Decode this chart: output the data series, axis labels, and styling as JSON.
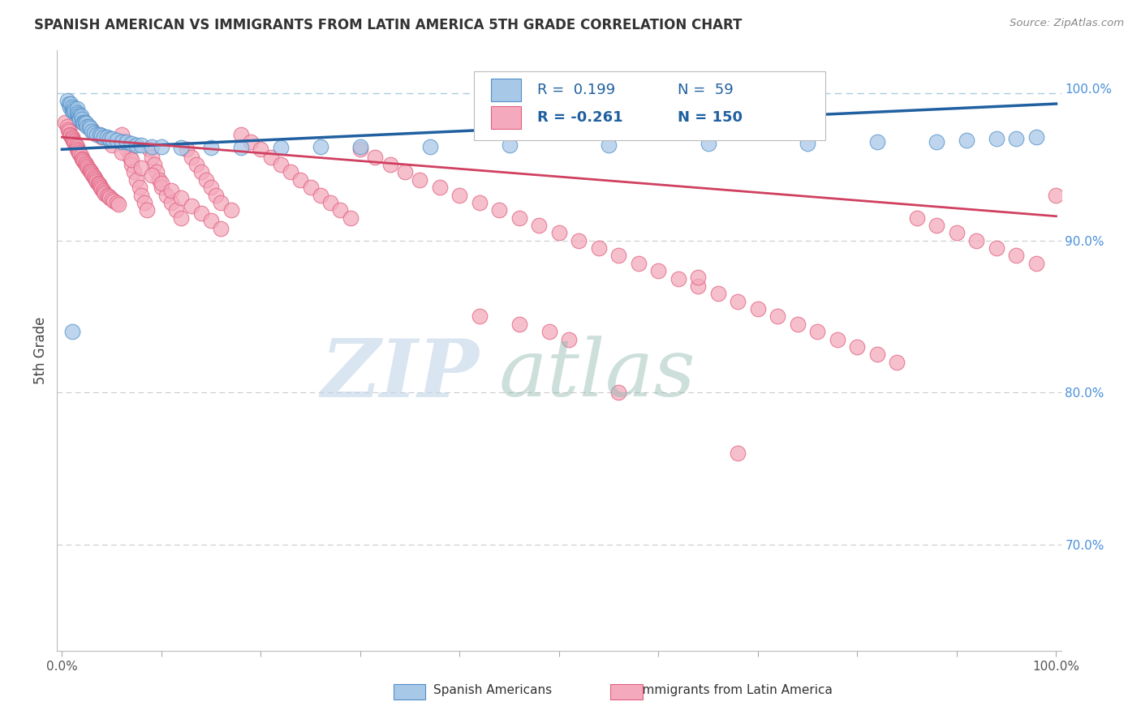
{
  "title": "SPANISH AMERICAN VS IMMIGRANTS FROM LATIN AMERICA 5TH GRADE CORRELATION CHART",
  "source_text": "Source: ZipAtlas.com",
  "ylabel": "5th Grade",
  "ylim": [
    0.63,
    1.025
  ],
  "xlim": [
    -0.005,
    1.005
  ],
  "ytick_values": [
    0.7,
    0.8,
    0.9,
    1.0
  ],
  "blue_color": "#A8C8E8",
  "pink_color": "#F4AABC",
  "blue_edge_color": "#5090C8",
  "pink_edge_color": "#E06080",
  "blue_line_color": "#2060A0",
  "pink_line_color": "#D04060",
  "grid_color": "#CCCCCC",
  "top_ref_color": "#AACCDD",
  "watermark_zip_color": "#C0D4E8",
  "watermark_atlas_color": "#90B8B0",
  "legend_r1": "R =  0.199",
  "legend_n1": "N =  59",
  "legend_r2": "R = -0.261",
  "legend_n2": "N = 150",
  "figsize": [
    14.06,
    8.92
  ],
  "dpi": 100,
  "blue_x": [
    0.005,
    0.007,
    0.008,
    0.009,
    0.01,
    0.01,
    0.011,
    0.012,
    0.013,
    0.015,
    0.015,
    0.016,
    0.017,
    0.018,
    0.018,
    0.019,
    0.02,
    0.021,
    0.022,
    0.023,
    0.024,
    0.025,
    0.027,
    0.028,
    0.03,
    0.032,
    0.035,
    0.038,
    0.04,
    0.042,
    0.045,
    0.048,
    0.05,
    0.055,
    0.06,
    0.065,
    0.07,
    0.075,
    0.08,
    0.09,
    0.1,
    0.12,
    0.15,
    0.18,
    0.22,
    0.26,
    0.3,
    0.37,
    0.45,
    0.55,
    0.65,
    0.75,
    0.82,
    0.88,
    0.91,
    0.94,
    0.96,
    0.98,
    0.01
  ],
  "blue_y": [
    0.992,
    0.99,
    0.988,
    0.99,
    0.988,
    0.985,
    0.985,
    0.987,
    0.985,
    0.987,
    0.984,
    0.983,
    0.982,
    0.981,
    0.98,
    0.982,
    0.98,
    0.978,
    0.977,
    0.978,
    0.977,
    0.975,
    0.975,
    0.974,
    0.972,
    0.971,
    0.97,
    0.97,
    0.969,
    0.968,
    0.968,
    0.967,
    0.967,
    0.966,
    0.965,
    0.965,
    0.964,
    0.963,
    0.963,
    0.962,
    0.962,
    0.961,
    0.961,
    0.961,
    0.961,
    0.962,
    0.962,
    0.962,
    0.963,
    0.963,
    0.964,
    0.964,
    0.965,
    0.965,
    0.966,
    0.967,
    0.967,
    0.968,
    0.84
  ],
  "pink_x": [
    0.003,
    0.005,
    0.006,
    0.007,
    0.008,
    0.009,
    0.01,
    0.01,
    0.011,
    0.012,
    0.013,
    0.014,
    0.015,
    0.015,
    0.016,
    0.017,
    0.018,
    0.019,
    0.02,
    0.021,
    0.022,
    0.023,
    0.024,
    0.025,
    0.026,
    0.027,
    0.028,
    0.029,
    0.03,
    0.031,
    0.032,
    0.033,
    0.034,
    0.035,
    0.036,
    0.037,
    0.038,
    0.039,
    0.04,
    0.041,
    0.042,
    0.043,
    0.045,
    0.047,
    0.048,
    0.05,
    0.052,
    0.055,
    0.057,
    0.06,
    0.062,
    0.065,
    0.068,
    0.07,
    0.072,
    0.075,
    0.078,
    0.08,
    0.083,
    0.085,
    0.088,
    0.09,
    0.093,
    0.095,
    0.098,
    0.1,
    0.105,
    0.11,
    0.115,
    0.12,
    0.125,
    0.13,
    0.135,
    0.14,
    0.145,
    0.15,
    0.155,
    0.16,
    0.17,
    0.18,
    0.19,
    0.2,
    0.21,
    0.22,
    0.23,
    0.24,
    0.25,
    0.26,
    0.27,
    0.28,
    0.29,
    0.3,
    0.315,
    0.33,
    0.345,
    0.36,
    0.38,
    0.4,
    0.42,
    0.44,
    0.46,
    0.48,
    0.5,
    0.52,
    0.54,
    0.56,
    0.58,
    0.6,
    0.62,
    0.64,
    0.66,
    0.68,
    0.7,
    0.72,
    0.74,
    0.76,
    0.78,
    0.8,
    0.82,
    0.84,
    0.86,
    0.88,
    0.9,
    0.92,
    0.94,
    0.96,
    0.98,
    1.0,
    0.42,
    0.46,
    0.49,
    0.51,
    0.56,
    0.64,
    0.68,
    0.02,
    0.03,
    0.04,
    0.05,
    0.06,
    0.07,
    0.08,
    0.09,
    0.1,
    0.11,
    0.12,
    0.13,
    0.14,
    0.15,
    0.16
  ],
  "pink_y": [
    0.978,
    0.975,
    0.973,
    0.972,
    0.97,
    0.969,
    0.968,
    0.967,
    0.966,
    0.965,
    0.964,
    0.963,
    0.962,
    0.96,
    0.959,
    0.958,
    0.957,
    0.956,
    0.954,
    0.953,
    0.952,
    0.951,
    0.95,
    0.949,
    0.948,
    0.947,
    0.946,
    0.945,
    0.944,
    0.943,
    0.942,
    0.941,
    0.94,
    0.939,
    0.938,
    0.937,
    0.936,
    0.935,
    0.934,
    0.933,
    0.932,
    0.931,
    0.93,
    0.929,
    0.928,
    0.927,
    0.926,
    0.925,
    0.924,
    0.97,
    0.965,
    0.96,
    0.955,
    0.95,
    0.945,
    0.94,
    0.935,
    0.93,
    0.925,
    0.92,
    0.96,
    0.955,
    0.95,
    0.945,
    0.94,
    0.935,
    0.93,
    0.925,
    0.92,
    0.915,
    0.96,
    0.955,
    0.95,
    0.945,
    0.94,
    0.935,
    0.93,
    0.925,
    0.92,
    0.97,
    0.965,
    0.96,
    0.955,
    0.95,
    0.945,
    0.94,
    0.935,
    0.93,
    0.925,
    0.92,
    0.915,
    0.96,
    0.955,
    0.95,
    0.945,
    0.94,
    0.935,
    0.93,
    0.925,
    0.92,
    0.915,
    0.91,
    0.905,
    0.9,
    0.895,
    0.89,
    0.885,
    0.88,
    0.875,
    0.87,
    0.865,
    0.86,
    0.855,
    0.85,
    0.845,
    0.84,
    0.835,
    0.83,
    0.825,
    0.82,
    0.915,
    0.91,
    0.905,
    0.9,
    0.895,
    0.89,
    0.885,
    0.93,
    0.85,
    0.845,
    0.84,
    0.835,
    0.8,
    0.876,
    0.76,
    0.978,
    0.973,
    0.968,
    0.963,
    0.958,
    0.953,
    0.948,
    0.943,
    0.938,
    0.933,
    0.928,
    0.923,
    0.918,
    0.913,
    0.908
  ],
  "blue_trendline_x": [
    0.0,
    1.0
  ],
  "blue_trendline_y": [
    0.96,
    0.99
  ],
  "pink_trendline_x": [
    0.0,
    1.0
  ],
  "pink_trendline_y": [
    0.968,
    0.916
  ]
}
